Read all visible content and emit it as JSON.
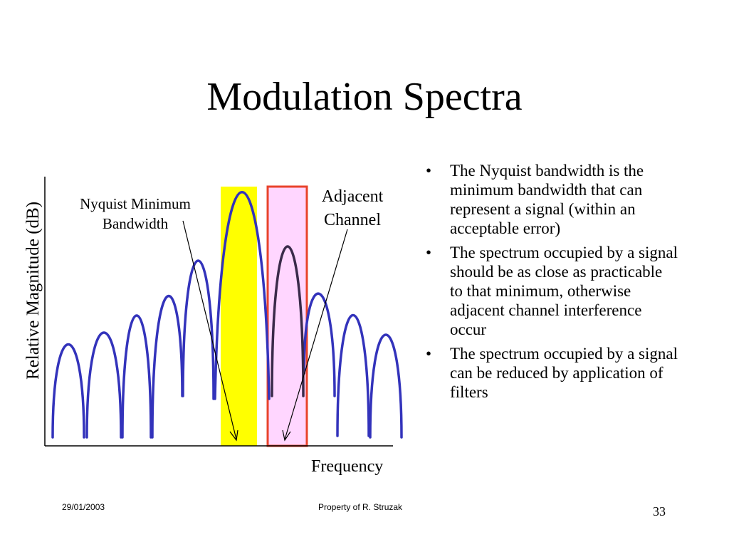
{
  "slide": {
    "title": "Modulation Spectra"
  },
  "diagram": {
    "y_axis_label": "Relative Magnitude (dB)",
    "x_axis_label": "Frequency",
    "callouts": {
      "nyquist": "Nyquist Minimum Bandwidth",
      "adjacent": "Adjacent Channel"
    },
    "colors": {
      "curve": "#3333bb",
      "adjacent_curve": "#3a2a4a",
      "nyquist_band": "#ffff00",
      "adjacent_band_fill": "#ffd6ff",
      "adjacent_band_border": "#e8432b",
      "axis": "#000000"
    }
  },
  "bullets": [
    "The Nyquist bandwidth is the minimum bandwidth that can represent a signal (within an acceptable error)",
    "The spectrum occupied by a signal should be as close as practicable to that minimum, otherwise adjacent channel interference occur",
    "The spectrum occupied by a signal can be reduced by application of filters"
  ],
  "bullet_symbol": "•",
  "footer": {
    "date": "29/01/2003",
    "owner": "Property of R. Struzak",
    "page": "33"
  }
}
